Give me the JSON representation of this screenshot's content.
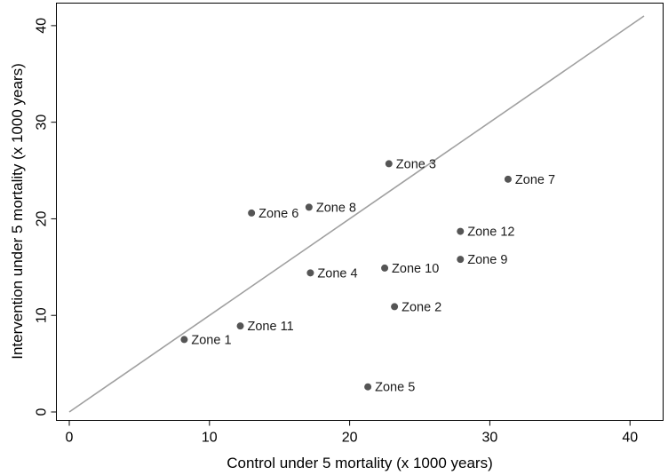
{
  "chart_data": {
    "type": "scatter",
    "xlabel": "Control under 5 mortality (x 1000 years)",
    "ylabel": "Intervention under 5 mortality (x 1000 years)",
    "xlim": [
      0,
      41
    ],
    "ylim": [
      0,
      41
    ],
    "x_ticks": [
      "0",
      "10",
      "20",
      "30",
      "40"
    ],
    "y_ticks": [
      "0",
      "10",
      "20",
      "30",
      "40"
    ],
    "grid": false,
    "reference_line": {
      "from": [
        0,
        0
      ],
      "to": [
        41,
        41
      ],
      "color": "#a0a0a0"
    },
    "marker_color": "#555555",
    "points": [
      {
        "label": "Zone 1",
        "x": 8.2,
        "y": 7.5
      },
      {
        "label": "Zone 2",
        "x": 23.2,
        "y": 10.9
      },
      {
        "label": "Zone 3",
        "x": 22.8,
        "y": 25.7
      },
      {
        "label": "Zone 4",
        "x": 17.2,
        "y": 14.4
      },
      {
        "label": "Zone 5",
        "x": 21.3,
        "y": 2.6
      },
      {
        "label": "Zone 6",
        "x": 13.0,
        "y": 20.6
      },
      {
        "label": "Zone 7",
        "x": 31.3,
        "y": 24.1
      },
      {
        "label": "Zone 8",
        "x": 17.1,
        "y": 21.2
      },
      {
        "label": "Zone 9",
        "x": 27.9,
        "y": 15.8
      },
      {
        "label": "Zone 10",
        "x": 22.5,
        "y": 14.9
      },
      {
        "label": "Zone 11",
        "x": 12.2,
        "y": 8.9
      },
      {
        "label": "Zone 12",
        "x": 27.9,
        "y": 18.7
      }
    ]
  }
}
